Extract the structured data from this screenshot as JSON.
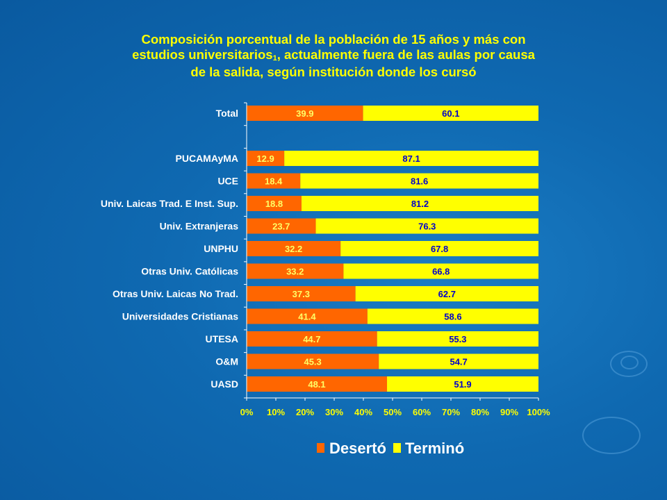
{
  "title_lines": [
    "Composición porcentual de la población de 15 años y más con",
    "estudios universitarios",
    ", actualmente fuera de las aulas por causa",
    "de la salida, según institución donde los cursó"
  ],
  "title_superscript": "1",
  "colors": {
    "deserto": "#ff6600",
    "termino": "#ffff00",
    "title": "#ffff00",
    "background": "#0f69b1"
  },
  "chart_data": {
    "type": "bar",
    "orientation": "horizontal",
    "stacked": "percent",
    "categories": [
      "Total",
      "PUCAMAyMA",
      "UCE",
      "Univ. Laicas Trad. E Inst. Sup.",
      "Univ. Extranjeras",
      "UNPHU",
      "Otras Univ. Católicas",
      "Otras Univ. Laicas No Trad.",
      "Universidades Cristianas",
      "UTESA",
      "O&M",
      "UASD"
    ],
    "series": [
      {
        "name": "Desertó",
        "color": "#ff6600",
        "values": [
          39.9,
          12.9,
          18.4,
          18.8,
          23.7,
          32.2,
          33.2,
          37.3,
          41.4,
          44.7,
          45.3,
          48.1
        ]
      },
      {
        "name": "Terminó",
        "color": "#ffff00",
        "values": [
          60.1,
          87.1,
          81.6,
          81.2,
          76.3,
          67.8,
          66.8,
          62.7,
          58.6,
          55.3,
          54.7,
          51.9
        ]
      }
    ],
    "xlim": [
      0,
      100
    ],
    "xticks": [
      "0%",
      "10%",
      "20%",
      "30%",
      "40%",
      "50%",
      "60%",
      "70%",
      "80%",
      "90%",
      "100%"
    ],
    "grid": false,
    "legend_position": "bottom"
  }
}
